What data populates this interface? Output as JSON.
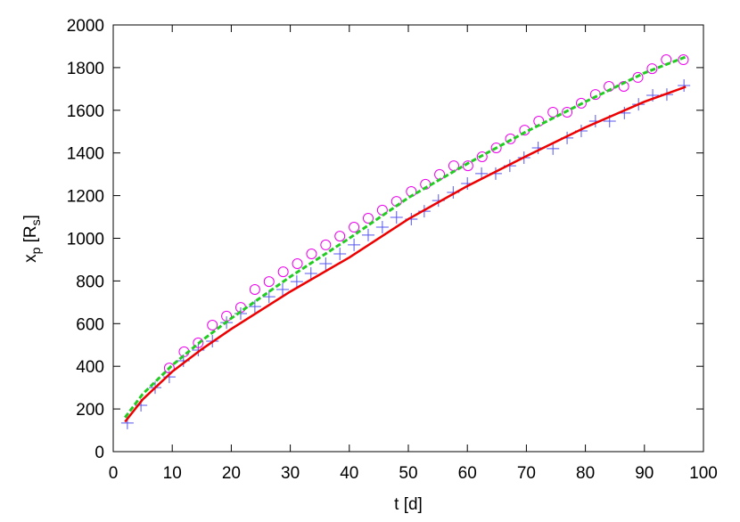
{
  "chart_data": {
    "type": "scatter",
    "x_label": "t [d]",
    "y_label_parts": [
      "x",
      "p",
      " [R",
      "s",
      "]"
    ],
    "xlim": [
      0,
      100
    ],
    "xticks": [
      0,
      10,
      20,
      30,
      40,
      50,
      60,
      70,
      80,
      90,
      100
    ],
    "ylim": [
      0,
      2000
    ],
    "yticks": [
      0,
      200,
      400,
      600,
      800,
      1000,
      1200,
      1400,
      1600,
      1800,
      2000
    ],
    "series": [
      {
        "marker": "plus",
        "color": "#5555ee",
        "x": [
          2.4,
          4.7,
          7.1,
          9.5,
          11.9,
          14.4,
          16.8,
          19.2,
          21.6,
          24,
          26.4,
          28.7,
          31.1,
          33.5,
          36,
          38.4,
          40.8,
          43.2,
          45.6,
          48,
          50.5,
          52.7,
          55.1,
          57.6,
          60,
          62.4,
          64.8,
          67.2,
          69.6,
          72,
          74.5,
          76.9,
          79.3,
          81.7,
          84.1,
          86.6,
          89,
          91.4,
          93.8,
          96.7
        ],
        "values": [
          134,
          217,
          300,
          350,
          426,
          476,
          518,
          605,
          647,
          680,
          726,
          760,
          797,
          835,
          881,
          927,
          969,
          1015,
          1052,
          1098,
          1090,
          1127,
          1177,
          1215,
          1257,
          1303,
          1303,
          1340,
          1378,
          1424,
          1420,
          1470,
          1503,
          1549,
          1549,
          1587,
          1628,
          1670,
          1674,
          1716
        ]
      },
      {
        "marker": "circle",
        "color": "#ee00ee",
        "x": [
          9.5,
          12,
          14.4,
          16.8,
          19.2,
          21.6,
          24,
          26.4,
          28.8,
          31.2,
          33.6,
          36,
          38.4,
          40.8,
          43.2,
          45.6,
          48,
          50.5,
          52.9,
          55.3,
          57.7,
          60.1,
          62.5,
          64.9,
          67.3,
          69.7,
          72.1,
          74.5,
          76.9,
          79.3,
          81.7,
          84,
          86.5,
          88.9,
          91.3,
          93.7,
          96.6
        ],
        "values": [
          392,
          468,
          510,
          593,
          635,
          676,
          760,
          797,
          843,
          881,
          927,
          969,
          1010,
          1052,
          1094,
          1132,
          1173,
          1219,
          1253,
          1299,
          1340,
          1340,
          1382,
          1424,
          1466,
          1507,
          1549,
          1591,
          1591,
          1633,
          1674,
          1712,
          1712,
          1754,
          1795,
          1837,
          1837
        ]
      },
      {
        "marker": "line",
        "color": "#ee0000",
        "dash": false,
        "x": [
          2,
          5,
          10,
          15,
          20,
          30,
          40,
          50,
          60,
          70,
          80,
          90,
          97
        ],
        "values": [
          140,
          245,
          375,
          480,
          575,
          750,
          910,
          1090,
          1245,
          1385,
          1520,
          1640,
          1710
        ]
      },
      {
        "marker": "line",
        "color": "#22cc22",
        "dash": true,
        "x": [
          2,
          5,
          10,
          15,
          20,
          30,
          40,
          50,
          60,
          70,
          80,
          90,
          97
        ],
        "values": [
          160,
          270,
          405,
          520,
          625,
          820,
          1000,
          1190,
          1350,
          1500,
          1640,
          1775,
          1850
        ]
      }
    ]
  }
}
